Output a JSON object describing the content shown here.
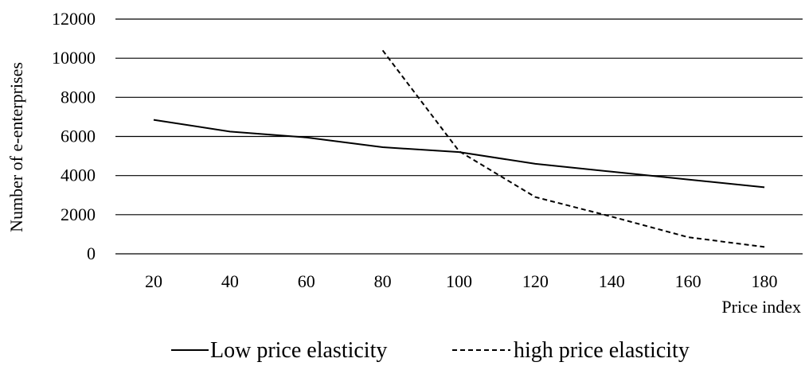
{
  "chart_data": {
    "type": "line",
    "title": "",
    "xlabel": "Price index",
    "ylabel": "Number of e-enterprises",
    "categories": [
      "20",
      "40",
      "60",
      "80",
      "100",
      "120",
      "140",
      "160",
      "180"
    ],
    "ylim": [
      0,
      12000
    ],
    "yticks": [
      "0",
      "2000",
      "4000",
      "6000",
      "8000",
      "10000",
      "12000"
    ],
    "grid": true,
    "legend": "bottom",
    "series": [
      {
        "name": "Low price elasticity",
        "style": "solid",
        "color": "#000000",
        "x": [
          20,
          40,
          60,
          80,
          100,
          120,
          140,
          160,
          180
        ],
        "values": [
          6850,
          6250,
          5950,
          5450,
          5200,
          4600,
          4200,
          3800,
          3400
        ]
      },
      {
        "name": "high price elasticity",
        "style": "dashed",
        "color": "#000000",
        "x": [
          80,
          100,
          120,
          140,
          160,
          180
        ],
        "values": [
          10400,
          5250,
          2900,
          1900,
          850,
          350
        ]
      }
    ]
  }
}
